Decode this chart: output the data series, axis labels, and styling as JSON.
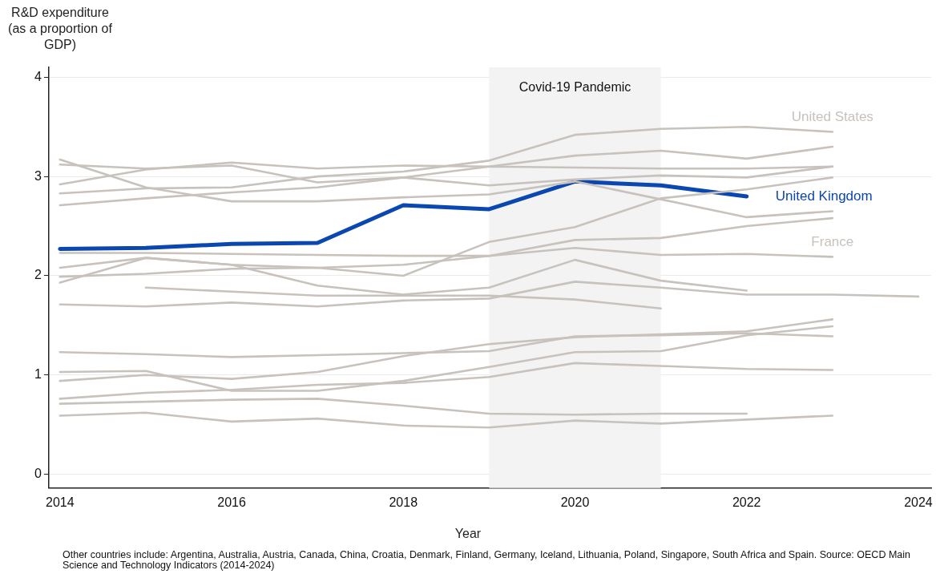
{
  "chart_data": {
    "type": "line",
    "ylabel": "R&D expenditure\n(as a proportion of GDP)",
    "xlabel": "Year",
    "xlim": [
      2013.87,
      2024.15
    ],
    "xticks": [
      2014,
      2016,
      2018,
      2020,
      2022,
      2024
    ],
    "ylim": [
      -0.14,
      4.1
    ],
    "yticks": [
      0,
      1,
      2,
      3,
      4
    ],
    "grid": "y",
    "bands": [
      {
        "axis": "x",
        "from": 2019,
        "to": 2021,
        "label": "Covid-19 Pandemic",
        "color": "#f3f3f3"
      }
    ],
    "annotations": [
      "Other countries include: Argentina, Australia, Austria, Canada, China, Croatia, Denmark, Finland, Germany, Iceland, Lithuania, Poland, Singapore, South Africa and Spain. Source: OECD Main Science and Technology Indicators (2014-2024)"
    ],
    "series": [
      {
        "name": "United States",
        "color": "#c8c2bd",
        "x": [
          2014,
          2015,
          2016,
          2017,
          2018,
          2019,
          2020,
          2021,
          2022,
          2023
        ],
        "values": [
          2.83,
          2.88,
          2.89,
          3.0,
          3.05,
          3.16,
          3.42,
          3.48,
          3.5,
          3.45
        ]
      },
      {
        "color": "#c8c2bd",
        "x": [
          2014,
          2015,
          2016,
          2017,
          2018,
          2019,
          2020,
          2021,
          2022,
          2023
        ],
        "values": [
          2.92,
          3.07,
          3.14,
          3.08,
          3.11,
          3.1,
          3.21,
          3.26,
          3.18,
          3.3
        ]
      },
      {
        "color": "#c8c2bd",
        "x": [
          2014,
          2015,
          2016,
          2017,
          2018,
          2019,
          2020,
          2021,
          2022,
          2023
        ],
        "values": [
          2.71,
          2.78,
          2.84,
          2.89,
          2.99,
          3.1,
          3.09,
          3.08,
          3.08,
          3.1
        ]
      },
      {
        "color": "#c8c2bd",
        "x": [
          2014,
          2015,
          2016,
          2017,
          2018,
          2019,
          2020,
          2021,
          2022,
          2023
        ],
        "values": [
          3.12,
          3.08,
          3.11,
          2.94,
          2.99,
          2.91,
          2.97,
          3.01,
          2.99,
          3.1
        ]
      },
      {
        "color": "#c8c2bd",
        "x": [
          2014,
          2015,
          2016,
          2017,
          2018,
          2019,
          2020,
          2021,
          2022,
          2023
        ],
        "values": [
          3.17,
          2.89,
          2.75,
          2.75,
          2.79,
          2.82,
          2.95,
          2.77,
          2.59,
          2.65
        ]
      },
      {
        "color": "#c8c2bd",
        "x": [
          2014,
          2015,
          2016,
          2017,
          2018,
          2019,
          2020,
          2021,
          2022,
          2023
        ],
        "values": [
          1.99,
          2.02,
          2.07,
          2.08,
          2.0,
          2.34,
          2.49,
          2.78,
          2.87,
          2.99
        ]
      },
      {
        "color": "#c8c2bd",
        "x": [
          2014,
          2015,
          2016,
          2017,
          2018,
          2019,
          2020,
          2021,
          2022,
          2023
        ],
        "values": [
          2.08,
          2.18,
          2.11,
          2.08,
          2.11,
          2.2,
          2.36,
          2.38,
          2.5,
          2.58
        ]
      },
      {
        "color": "#c8c2bd",
        "x": [
          2014,
          2015,
          2016,
          2017,
          2018,
          2019,
          2020,
          2021,
          2022
        ],
        "values": [
          1.93,
          2.18,
          2.11,
          1.9,
          1.81,
          1.88,
          2.16,
          1.95,
          1.85
        ]
      },
      {
        "name": "France",
        "color": "#c8c2bd",
        "x": [
          2014,
          2015,
          2016,
          2017,
          2018,
          2019,
          2020,
          2021,
          2022,
          2023
        ],
        "values": [
          2.23,
          2.23,
          2.22,
          2.21,
          2.2,
          2.2,
          2.28,
          2.21,
          2.22,
          2.19
        ]
      },
      {
        "color": "#c8c2bd",
        "x": [
          2015,
          2016,
          2017,
          2018,
          2019,
          2020,
          2021
        ],
        "values": [
          1.88,
          1.84,
          1.8,
          1.8,
          1.8,
          1.76,
          1.67
        ]
      },
      {
        "color": "#c8c2bd",
        "x": [
          2014,
          2015,
          2016,
          2017,
          2018,
          2019,
          2020,
          2021,
          2022,
          2023,
          2024
        ],
        "values": [
          1.71,
          1.69,
          1.73,
          1.69,
          1.75,
          1.77,
          1.94,
          1.88,
          1.81,
          1.81,
          1.79
        ]
      },
      {
        "color": "#c8c2bd",
        "x": [
          2014,
          2015,
          2016,
          2017,
          2018,
          2019,
          2020,
          2021,
          2022,
          2023
        ],
        "values": [
          1.23,
          1.21,
          1.18,
          1.2,
          1.22,
          1.24,
          1.39,
          1.4,
          1.42,
          1.39
        ]
      },
      {
        "color": "#c8c2bd",
        "x": [
          2014,
          2015,
          2016,
          2017,
          2018,
          2019,
          2020,
          2021,
          2022,
          2023
        ],
        "values": [
          0.94,
          1.0,
          0.96,
          1.03,
          1.19,
          1.31,
          1.38,
          1.41,
          1.44,
          1.56
        ]
      },
      {
        "color": "#c8c2bd",
        "x": [
          2014,
          2015,
          2016,
          2017,
          2018,
          2019,
          2020,
          2021,
          2022,
          2023
        ],
        "values": [
          1.03,
          1.04,
          0.84,
          0.84,
          0.94,
          1.08,
          1.23,
          1.24,
          1.4,
          1.49
        ]
      },
      {
        "color": "#c8c2bd",
        "x": [
          2014,
          2015,
          2016,
          2017,
          2018,
          2019,
          2020,
          2021,
          2022,
          2023
        ],
        "values": [
          0.76,
          0.82,
          0.85,
          0.9,
          0.92,
          0.98,
          1.12,
          1.09,
          1.06,
          1.05
        ]
      },
      {
        "color": "#c8c2bd",
        "x": [
          2014,
          2015,
          2016,
          2017,
          2018,
          2019,
          2020,
          2021,
          2022
        ],
        "values": [
          0.71,
          0.73,
          0.75,
          0.76,
          0.69,
          0.61,
          0.6,
          0.61,
          0.61
        ]
      },
      {
        "color": "#c8c2bd",
        "x": [
          2014,
          2015,
          2016,
          2017,
          2018,
          2019,
          2020,
          2021,
          2022,
          2023
        ],
        "values": [
          0.59,
          0.62,
          0.53,
          0.56,
          0.49,
          0.47,
          0.54,
          0.51,
          0.55,
          0.59
        ]
      },
      {
        "name": "United Kingdom",
        "color": "#0a47b0",
        "x": [
          2014,
          2015,
          2016,
          2017,
          2018,
          2019,
          2020,
          2021,
          2022
        ],
        "values": [
          2.27,
          2.28,
          2.32,
          2.33,
          2.71,
          2.67,
          2.95,
          2.91,
          2.8
        ]
      }
    ]
  }
}
